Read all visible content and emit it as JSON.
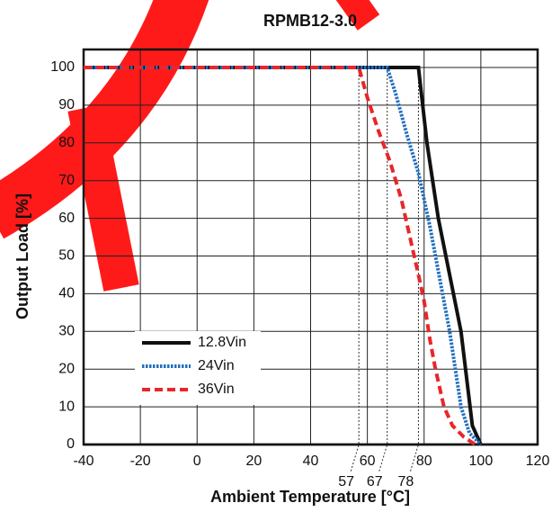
{
  "chart_data": {
    "type": "line",
    "title": "RPMB12-3.0",
    "x_label": "Ambient Temperature [°C]",
    "y_label": "Output Load [%]",
    "xlim": [
      -40,
      120
    ],
    "ylim": [
      0,
      100
    ],
    "xticks": [
      -40,
      -20,
      0,
      20,
      40,
      60,
      80,
      100,
      120
    ],
    "yticks": [
      0,
      10,
      20,
      30,
      40,
      50,
      60,
      70,
      80,
      90,
      100
    ],
    "grid": true,
    "legend": "lower left",
    "series": [
      {
        "name": "12.8Vin",
        "color": "#111111",
        "linestyle": "solid",
        "x": [
          -40,
          78,
          81,
          85,
          89,
          93,
          97,
          100
        ],
        "values": [
          100,
          100,
          80,
          60,
          45,
          30,
          5,
          0
        ]
      },
      {
        "name": "24Vin",
        "color": "#1f6fbf",
        "linestyle": "dotted",
        "x": [
          -40,
          67,
          70,
          74,
          78,
          82,
          86,
          89,
          91,
          93,
          96,
          100
        ],
        "values": [
          100,
          100,
          93,
          82,
          72,
          58,
          42,
          30,
          20,
          10,
          3,
          0
        ]
      },
      {
        "name": "36Vin",
        "color": "#e8262b",
        "linestyle": "dashed",
        "x": [
          -40,
          57,
          60,
          64,
          68,
          72,
          75,
          78,
          80,
          82,
          84,
          87,
          90,
          94,
          98
        ],
        "values": [
          100,
          100,
          92,
          83,
          75,
          65,
          55,
          45,
          38,
          28,
          20,
          10,
          5,
          2,
          0
        ]
      }
    ],
    "annotations": [
      57,
      67,
      78
    ]
  }
}
